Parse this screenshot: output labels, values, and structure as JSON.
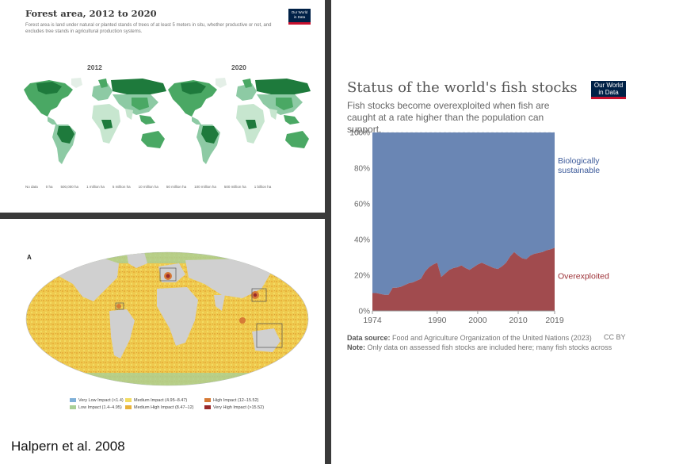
{
  "forest": {
    "title": "Forest area, 2012 to 2020",
    "subtitle": "Forest area is land under natural or planted stands of trees of at least 5 meters in situ, whether productive or not, and excludes tree stands in agricultural production systems.",
    "logo_line1": "Our World",
    "logo_line2": "in Data",
    "year_left": "2012",
    "year_right": "2020",
    "legend": [
      "No data",
      "0 ha",
      "500,000 ha",
      "1 million ha",
      "5 million ha",
      "10 million ha",
      "50 million ha",
      "100 million ha",
      "500 million ha",
      "1 billion ha"
    ],
    "colors": {
      "high": "#1e7a3c",
      "mid": "#4aa864",
      "low": "#8dcaa4",
      "verylow": "#c7e6cf"
    }
  },
  "halpern": {
    "panel_letter": "A",
    "credit": "Halpern et al. 2008",
    "legend": [
      {
        "label": "Very Low Impact (<1.4)",
        "color": "#7fb0d8"
      },
      {
        "label": "Low Impact (1.4–4.95)",
        "color": "#a9cf96"
      },
      {
        "label": "Medium Impact (4.95–8.47)",
        "color": "#f2dc63"
      },
      {
        "label": "Medium High Impact (8.47–12)",
        "color": "#e8b23a"
      },
      {
        "label": "High Impact (12–15.52)",
        "color": "#d67a36"
      },
      {
        "label": "Very High Impact (>15.52)",
        "color": "#9a2a2a"
      }
    ]
  },
  "fish": {
    "title": "Status of the world's fish stocks",
    "subtitle": "Fish stocks become overexploited when fish are caught at a rate higher than the population can support.",
    "logo_line1": "Our World",
    "logo_line2": "in Data",
    "source_label": "Data source:",
    "source_text": "Food and Agriculture Organization of the United Nations (2023)",
    "license": "CC BY",
    "note_label": "Note:",
    "note_text": "Only data on assessed fish stocks are included here; many fish stocks across"
  },
  "chart_data": {
    "type": "area",
    "title": "Status of the world's fish stocks",
    "x": [
      1974,
      1975,
      1976,
      1977,
      1978,
      1979,
      1980,
      1981,
      1982,
      1983,
      1984,
      1985,
      1986,
      1987,
      1988,
      1989,
      1990,
      1991,
      1992,
      1993,
      1994,
      1995,
      1996,
      1997,
      1998,
      1999,
      2000,
      2001,
      2002,
      2003,
      2004,
      2005,
      2006,
      2007,
      2008,
      2009,
      2010,
      2011,
      2012,
      2013,
      2014,
      2015,
      2016,
      2017,
      2018,
      2019
    ],
    "series": [
      {
        "name": "Overexploited",
        "color": "#a14b4e",
        "values": [
          10,
          10,
          9.5,
          9,
          9,
          13,
          13,
          13.5,
          14.5,
          15.5,
          16,
          17,
          18,
          22,
          24.5,
          26,
          27,
          19,
          21,
          23,
          24,
          24.5,
          25.5,
          24,
          23,
          24.5,
          26,
          27,
          26,
          25,
          24,
          23.5,
          25,
          27,
          30.5,
          33,
          31,
          29.5,
          29,
          31,
          32,
          32.5,
          33,
          34,
          34.5,
          35.4
        ]
      },
      {
        "name": "Biologically sustainable",
        "color": "#6a86b4",
        "values": [
          90,
          90,
          90.5,
          91,
          91,
          87,
          87,
          86.5,
          85.5,
          84.5,
          84,
          83,
          82,
          78,
          75.5,
          74,
          73,
          81,
          79,
          77,
          76,
          75.5,
          74.5,
          76,
          77,
          75.5,
          74,
          73,
          74,
          75,
          76,
          76.5,
          75,
          73,
          69.5,
          67,
          69,
          70.5,
          71,
          69,
          68,
          67.5,
          67,
          66,
          65.5,
          64.6
        ]
      }
    ],
    "xticks": [
      "1974",
      "1990",
      "2000",
      "2010",
      "2019"
    ],
    "yticks": [
      "0%",
      "20%",
      "40%",
      "60%",
      "80%",
      "100%"
    ],
    "ylim": [
      0,
      100
    ],
    "stacked": true,
    "grid": true,
    "legend_position": "right-inline"
  }
}
